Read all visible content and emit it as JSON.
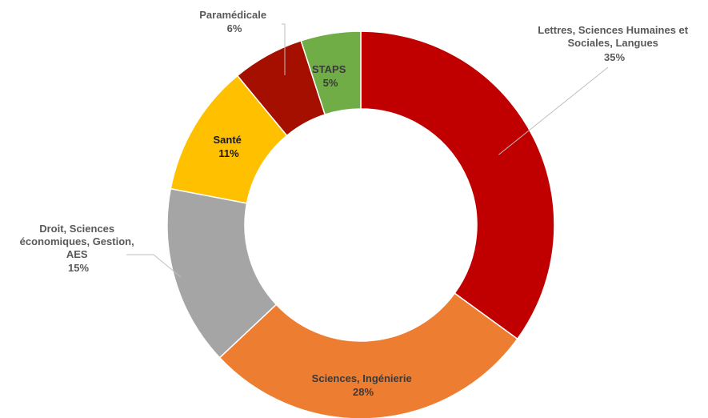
{
  "chart_data": {
    "type": "pie",
    "donut": true,
    "title": "",
    "slices": [
      {
        "label": "Lettres, Sciences Humaines et Sociales, Langues",
        "value": 35,
        "value_label": "35%",
        "color": "#C00000"
      },
      {
        "label": "Sciences, Ingénierie",
        "value": 28,
        "value_label": "28%",
        "color": "#ED7D31"
      },
      {
        "label": "Droit, Sciences économiques, Gestion, AES",
        "value": 15,
        "value_label": "15%",
        "color": "#A5A5A5"
      },
      {
        "label": "Santé",
        "value": 11,
        "value_label": "11%",
        "color": "#FFC000"
      },
      {
        "label": "Paramédicale",
        "value": 6,
        "value_label": "6%",
        "color": "#A50F00"
      },
      {
        "label": "STAPS",
        "value": 5,
        "value_label": "5%",
        "color": "#70AD47"
      }
    ],
    "legend": "none"
  }
}
